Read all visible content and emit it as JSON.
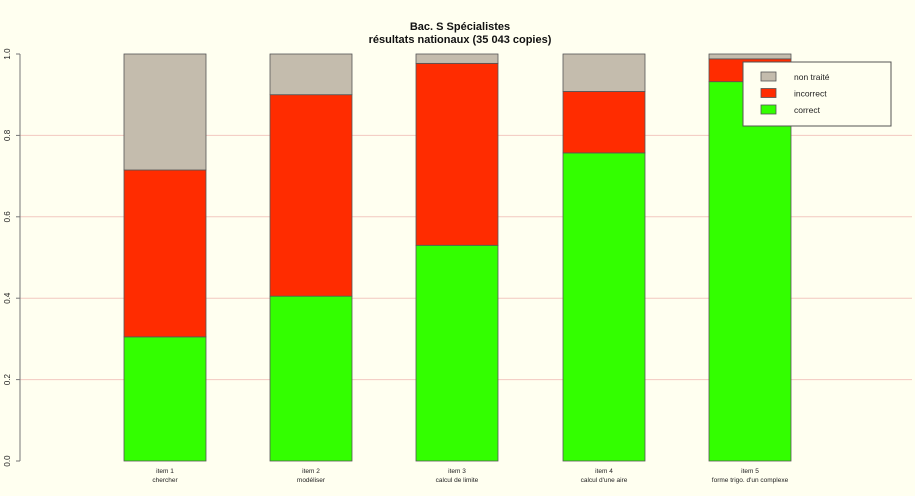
{
  "colors": {
    "background": "#FFFFF0",
    "grid": "#F2C8C0",
    "axis": "#777777",
    "bar_border": "#555555",
    "legend_border": "#555555"
  },
  "chart_data": {
    "type": "bar",
    "stacked": true,
    "title": "Bac. S Spécialistes",
    "subtitle": "résultats nationaux (35 043 copies)",
    "xlabel": "",
    "ylabel": "",
    "ylim": [
      0,
      1
    ],
    "yticks": [
      "0.0",
      "0.2",
      "0.4",
      "0.6",
      "0.8",
      "1.0"
    ],
    "grid": true,
    "legend_position": "top-right",
    "categories": [
      {
        "line1": "item 1",
        "line2": "chercher"
      },
      {
        "line1": "item 2",
        "line2": "modéliser"
      },
      {
        "line1": "item 3",
        "line2": "calcul de limite"
      },
      {
        "line1": "item 4",
        "line2": "calcul d'une aire"
      },
      {
        "line1": "item 5",
        "line2": "forme trigo. d'un complexe"
      }
    ],
    "series": [
      {
        "name": "correct",
        "color": "#33FF00",
        "values": [
          0.305,
          0.405,
          0.53,
          0.757,
          0.932
        ]
      },
      {
        "name": "incorrect",
        "color": "#FF2C00",
        "values": [
          0.41,
          0.495,
          0.447,
          0.151,
          0.056
        ]
      },
      {
        "name": "non traité",
        "color": "#C4BCAD",
        "values": [
          0.285,
          0.1,
          0.023,
          0.092,
          0.012
        ]
      }
    ],
    "legend_order": [
      "non traité",
      "incorrect",
      "correct"
    ]
  }
}
